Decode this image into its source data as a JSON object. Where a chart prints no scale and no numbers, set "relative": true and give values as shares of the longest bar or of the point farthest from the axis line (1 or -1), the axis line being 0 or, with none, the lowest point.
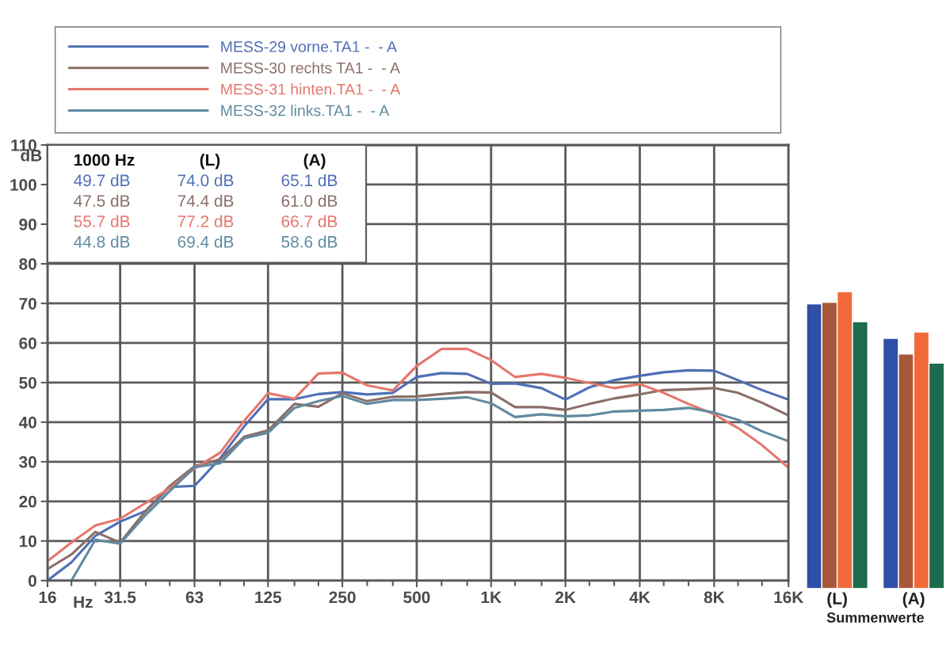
{
  "chart_data": [
    {
      "type": "line",
      "xlabel": "Hz",
      "ylabel": "dB",
      "log": "x",
      "grid": true,
      "legend": "top",
      "line_style": "solid",
      "marker": "none",
      "x": [
        16,
        20,
        25,
        31.5,
        40,
        50,
        63,
        80,
        100,
        125,
        160,
        200,
        250,
        315,
        400,
        500,
        630,
        800,
        1000,
        1250,
        1600,
        2000,
        2500,
        3150,
        4000,
        5000,
        6300,
        8000,
        10000,
        12500,
        16000
      ],
      "xlim": [
        16,
        16000
      ],
      "xticks": [
        16,
        {
          "value": 20,
          "label": null
        },
        {
          "value": 25,
          "label": null
        },
        31.5,
        {
          "value": 40,
          "label": null
        },
        {
          "value": 50,
          "label": null
        },
        63,
        {
          "value": 80,
          "label": null
        },
        {
          "value": 100,
          "label": null
        },
        125,
        {
          "value": 160,
          "label": null
        },
        {
          "value": 200,
          "label": null
        },
        250,
        {
          "value": 315,
          "label": null
        },
        {
          "value": 400,
          "label": null
        },
        500,
        {
          "value": 630,
          "label": null
        },
        {
          "value": 800,
          "label": null
        },
        {
          "value": 1000,
          "label": "1K"
        },
        {
          "value": 1250,
          "label": null
        },
        {
          "value": 1600,
          "label": null
        },
        {
          "value": 2000,
          "label": "2K"
        },
        {
          "value": 2500,
          "label": null
        },
        {
          "value": 3150,
          "label": null
        },
        {
          "value": 4000,
          "label": "4K"
        },
        {
          "value": 5000,
          "label": null
        },
        {
          "value": 6300,
          "label": null
        },
        {
          "value": 8000,
          "label": "8K"
        },
        {
          "value": 10000,
          "label": null
        },
        {
          "value": 12500,
          "label": null
        },
        {
          "value": 16000,
          "label": "16K"
        }
      ],
      "ylim": [
        0,
        110
      ],
      "yticks": [
        0,
        10,
        20,
        30,
        40,
        50,
        60,
        70,
        80,
        90,
        100,
        110
      ],
      "series": [
        {
          "name": "MESS-29 vorne.TA1 -  - A",
          "color": "#4f6fb5",
          "values": [
            0,
            4.6,
            11.3,
            14.9,
            17.6,
            23.6,
            23.9,
            30.9,
            38.9,
            45.8,
            45.8,
            47.1,
            47.6,
            47,
            47.4,
            51.4,
            52.4,
            52.2,
            49.7,
            49.8,
            48.6,
            45.7,
            48.8,
            50.6,
            51.7,
            52.6,
            53.1,
            53,
            50.6,
            48.1,
            45.7
          ]
        },
        {
          "name": "MESS-30 rechts TA1 -  - A",
          "color": "#8a6e68",
          "values": [
            2.9,
            6.6,
            12.3,
            9.6,
            17.6,
            23.9,
            28.9,
            30.6,
            36.3,
            37.9,
            44.6,
            43.9,
            47.3,
            45.3,
            46.4,
            46.5,
            47.1,
            47.6,
            47.5,
            43.8,
            43.8,
            43.1,
            44.6,
            46,
            47,
            48.1,
            48.3,
            48.6,
            47.4,
            44.9,
            41.7
          ]
        },
        {
          "name": "MESS-31 hinten.TA1 -  - A",
          "color": "#e5766c",
          "values": [
            4.9,
            9.6,
            13.9,
            15.6,
            19.6,
            23.3,
            28.3,
            32.3,
            40.3,
            47.3,
            45.9,
            52.3,
            52.5,
            49.3,
            48,
            54.2,
            58.5,
            58.5,
            55.7,
            51.4,
            52.2,
            51.2,
            49.9,
            48.6,
            49.6,
            47.4,
            44.6,
            42,
            38.5,
            34.2,
            28.5
          ]
        },
        {
          "name": "MESS-32 links.TA1 -  - A",
          "color": "#5f8aa0",
          "values": [
            null,
            0,
            10.3,
            9.3,
            16.6,
            22.6,
            28.6,
            29.6,
            35.9,
            37.3,
            43.6,
            45.3,
            46.6,
            44.6,
            45.6,
            45.6,
            45.9,
            46.3,
            44.8,
            41.3,
            42,
            41.5,
            41.7,
            42.7,
            42.9,
            43.1,
            43.6,
            42.4,
            40.6,
            37.7,
            35.2
          ]
        }
      ],
      "annotations": [
        "1000 Hz",
        "(L)",
        "(A)",
        "49.7 dB",
        "74.0 dB",
        "65.1 dB",
        "47.5 dB",
        "74.4 dB",
        "61.0 dB",
        "55.7 dB",
        "77.2 dB",
        "66.7 dB",
        "44.8 dB",
        "69.4 dB",
        "58.6 dB"
      ]
    },
    {
      "type": "bar",
      "relative": true,
      "xlabel": "Summenwerte",
      "tick_labels": "x",
      "categories": [
        "(L)",
        "(A)"
      ],
      "series": [
        {
          "color": "#2f4fa8",
          "values": [
            0.959,
            0.843
          ]
        },
        {
          "color": "#a8583a",
          "values": [
            0.964,
            0.79
          ]
        },
        {
          "color": "#f26a3a",
          "values": [
            1,
            0.864
          ]
        },
        {
          "color": "#1d6b4c",
          "values": [
            0.899,
            0.759
          ]
        }
      ]
    }
  ]
}
